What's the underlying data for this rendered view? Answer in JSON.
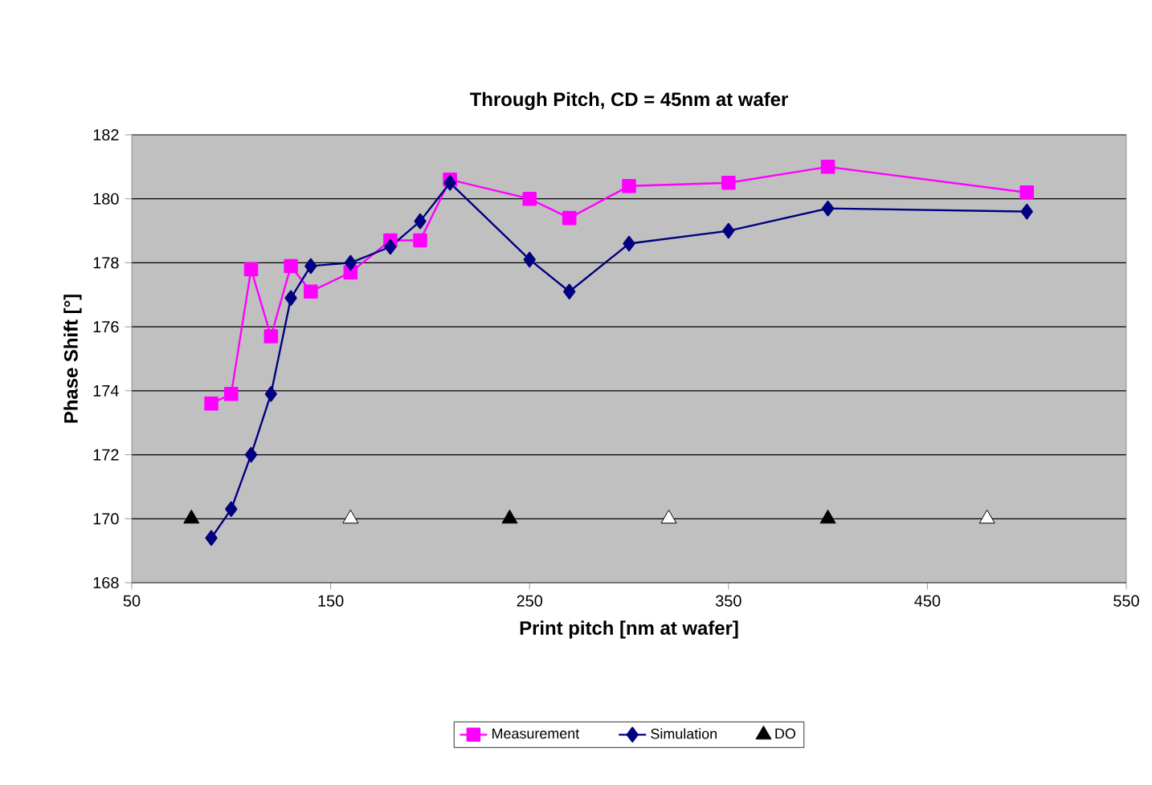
{
  "chart_data": {
    "type": "line",
    "title": "Through Pitch, CD = 45nm at wafer",
    "xlabel": "Print pitch [nm at wafer]",
    "ylabel": "Phase Shift [°]",
    "xlim": [
      50,
      550
    ],
    "xticks": [
      50,
      150,
      250,
      350,
      450,
      550
    ],
    "ylim": [
      168,
      182
    ],
    "yticks": [
      168,
      170,
      172,
      174,
      176,
      178,
      180,
      182
    ],
    "grid": "y",
    "legend": "bottom",
    "series": [
      {
        "name": "Measurement",
        "marker": "square",
        "color": "#ff00ff",
        "x": [
          90,
          100,
          110,
          120,
          130,
          140,
          160,
          180,
          195,
          210,
          250,
          270,
          300,
          350,
          400,
          500
        ],
        "values": [
          173.6,
          173.9,
          177.8,
          175.7,
          177.9,
          177.1,
          177.7,
          178.7,
          178.7,
          180.6,
          180.0,
          179.4,
          180.4,
          180.5,
          181.0,
          180.2
        ]
      },
      {
        "name": "Simulation",
        "marker": "diamond",
        "color": "#000080",
        "x": [
          90,
          100,
          110,
          120,
          130,
          140,
          160,
          180,
          195,
          210,
          250,
          270,
          300,
          350,
          400,
          500
        ],
        "values": [
          169.4,
          170.3,
          172.0,
          173.9,
          176.9,
          177.9,
          178.0,
          178.5,
          179.3,
          180.5,
          178.1,
          177.1,
          178.6,
          179.0,
          179.7,
          179.6
        ]
      },
      {
        "name": "DO",
        "type": "scatter",
        "marker": "triangle",
        "color": "#000000",
        "x": [
          80,
          240,
          400
        ],
        "values": [
          170,
          170,
          170
        ]
      },
      {
        "type": "scatter",
        "marker": "triangle",
        "color": "#ffffff",
        "x": [
          160,
          320,
          480
        ],
        "values": [
          170,
          170,
          170
        ]
      }
    ]
  }
}
